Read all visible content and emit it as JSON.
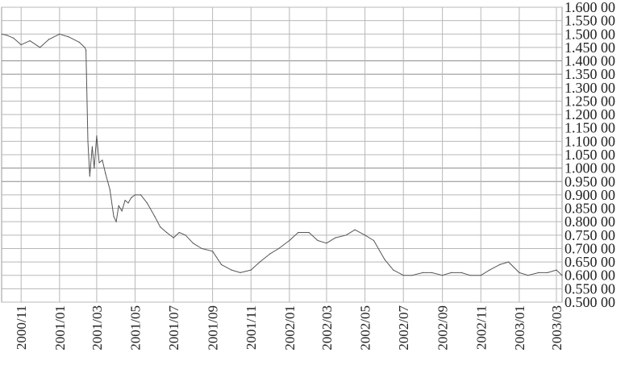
{
  "chart_data": {
    "type": "line",
    "title": "",
    "xlabel": "",
    "ylabel": "",
    "ylim": [
      0.5,
      1.6
    ],
    "y_ticks": [
      "1.600 00",
      "1.550 00",
      "1.500 00",
      "1.450 00",
      "1.400 00",
      "1.350 00",
      "1.300 00",
      "1.250 00",
      "1.200 00",
      "1.150 00",
      "1.100 00",
      "1.050 00",
      "1.000 00",
      "0.950 00",
      "0.900 00",
      "0.850 00",
      "0.800 00",
      "0.750 00",
      "0.700 00",
      "0.650 00",
      "0.600 00",
      "0.550 00",
      "0.500 00"
    ],
    "x_ticks": [
      "2000/11",
      "2001/01",
      "2001/03",
      "2001/05",
      "2001/07",
      "2001/09",
      "2001/11",
      "2002/01",
      "2002/03",
      "2002/05",
      "2002/07",
      "2002/09",
      "2002/11",
      "2003/01",
      "2003/03"
    ],
    "grid": true,
    "legend": "none",
    "line_color": "#555555",
    "series": [
      {
        "x": [
          "2000/10/01",
          "2000/10/10",
          "2000/10/20",
          "2000/11/01",
          "2000/11/15",
          "2000/12/01",
          "2000/12/15",
          "2001/01/01",
          "2001/01/15",
          "2001/02/01",
          "2001/02/10",
          "2001/02/12",
          "2001/02/15",
          "2001/02/18",
          "2001/02/22",
          "2001/02/25",
          "2001/03/01",
          "2001/03/05",
          "2001/03/10",
          "2001/03/15",
          "2001/03/22",
          "2001/03/28",
          "2001/04/01",
          "2001/04/05",
          "2001/04/10",
          "2001/04/15",
          "2001/04/20",
          "2001/04/25",
          "2001/05/01",
          "2001/05/10",
          "2001/05/20",
          "2001/06/01",
          "2001/06/10",
          "2001/06/20",
          "2001/07/01",
          "2001/07/10",
          "2001/07/20",
          "2001/08/01",
          "2001/08/15",
          "2001/09/01",
          "2001/09/15",
          "2001/10/01",
          "2001/10/15",
          "2001/11/01",
          "2001/11/15",
          "2001/12/01",
          "2001/12/15",
          "2002/01/01",
          "2002/01/15",
          "2002/02/01",
          "2002/02/15",
          "2002/03/01",
          "2002/03/15",
          "2002/04/01",
          "2002/04/15",
          "2002/05/01",
          "2002/05/15",
          "2002/06/01",
          "2002/06/15",
          "2002/07/01",
          "2002/07/15",
          "2002/08/01",
          "2002/08/15",
          "2002/09/01",
          "2002/09/15",
          "2002/10/01",
          "2002/10/15",
          "2002/11/01",
          "2002/11/15",
          "2002/12/01",
          "2002/12/15",
          "2003/01/01",
          "2003/01/15",
          "2003/02/01",
          "2003/02/15",
          "2003/03/01",
          "2003/03/10"
        ],
        "y": [
          1.5,
          1.495,
          1.485,
          1.46,
          1.475,
          1.45,
          1.48,
          1.5,
          1.49,
          1.47,
          1.45,
          1.44,
          1.1,
          0.97,
          1.08,
          1.0,
          1.12,
          1.02,
          1.03,
          0.98,
          0.92,
          0.82,
          0.8,
          0.86,
          0.84,
          0.88,
          0.87,
          0.89,
          0.9,
          0.9,
          0.87,
          0.82,
          0.78,
          0.76,
          0.74,
          0.76,
          0.75,
          0.72,
          0.7,
          0.69,
          0.64,
          0.62,
          0.61,
          0.62,
          0.65,
          0.68,
          0.7,
          0.73,
          0.76,
          0.76,
          0.73,
          0.72,
          0.74,
          0.75,
          0.77,
          0.75,
          0.73,
          0.66,
          0.62,
          0.6,
          0.6,
          0.61,
          0.61,
          0.6,
          0.61,
          0.61,
          0.6,
          0.6,
          0.62,
          0.64,
          0.65,
          0.61,
          0.6,
          0.61,
          0.61,
          0.62,
          0.6
        ]
      }
    ]
  }
}
